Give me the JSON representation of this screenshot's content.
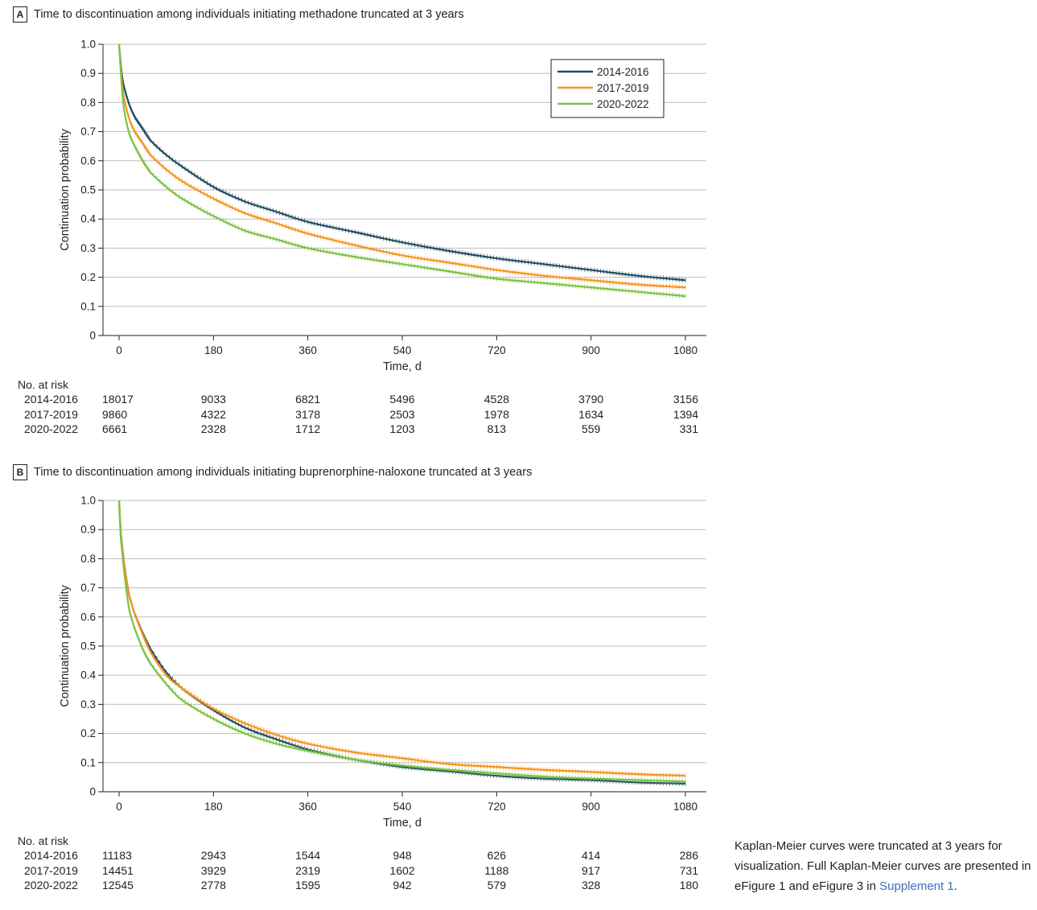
{
  "panels": [
    {
      "letter": "A",
      "title": "Time to discontinuation among individuals initiating methadone truncated at 3 years",
      "risk": {
        "header": "No. at risk",
        "rows": [
          {
            "label": "2014-2016",
            "values": [
              "18017",
              "9033",
              "6821",
              "5496",
              "4528",
              "3790",
              "3156"
            ]
          },
          {
            "label": "2017-2019",
            "values": [
              "9860",
              "4322",
              "3178",
              "2503",
              "1978",
              "1634",
              "1394"
            ]
          },
          {
            "label": "2020-2022",
            "values": [
              "6661",
              "2328",
              "1712",
              "1203",
              "813",
              "559",
              "331"
            ]
          }
        ]
      }
    },
    {
      "letter": "B",
      "title": "Time to discontinuation among individuals initiating buprenorphine-naloxone truncated at 3 years",
      "risk": {
        "header": "No. at risk",
        "rows": [
          {
            "label": "2014-2016",
            "values": [
              "11183",
              "2943",
              "1544",
              "948",
              "626",
              "414",
              "286"
            ]
          },
          {
            "label": "2017-2019",
            "values": [
              "14451",
              "3929",
              "2319",
              "1602",
              "1188",
              "917",
              "731"
            ]
          },
          {
            "label": "2020-2022",
            "values": [
              "12545",
              "2778",
              "1595",
              "942",
              "579",
              "328",
              "180"
            ]
          }
        ]
      }
    }
  ],
  "chart_data": [
    {
      "type": "line",
      "title": "Time to discontinuation among individuals initiating methadone truncated at 3 years",
      "xlabel": "Time, d",
      "ylabel": "Continuation probability",
      "xlim": [
        0,
        1080
      ],
      "ylim": [
        0,
        1.0
      ],
      "xticks": [
        "0",
        "180",
        "360",
        "540",
        "720",
        "900",
        "1080"
      ],
      "yticks": [
        "0",
        "0.1",
        "0.2",
        "0.3",
        "0.4",
        "0.5",
        "0.6",
        "0.7",
        "0.8",
        "0.9",
        "1.0"
      ],
      "grid": "horizontal",
      "legend_position": "top-right",
      "x": [
        0,
        5,
        10,
        20,
        30,
        45,
        60,
        90,
        120,
        180,
        240,
        300,
        360,
        450,
        540,
        630,
        720,
        810,
        900,
        990,
        1080
      ],
      "series": [
        {
          "name": "2014-2016",
          "color": "#1f4e5f",
          "values": [
            1.0,
            0.9,
            0.85,
            0.79,
            0.75,
            0.71,
            0.67,
            0.62,
            0.58,
            0.51,
            0.46,
            0.425,
            0.39,
            0.355,
            0.32,
            0.29,
            0.265,
            0.245,
            0.225,
            0.205,
            0.19
          ]
        },
        {
          "name": "2017-2019",
          "color": "#f7941d",
          "values": [
            1.0,
            0.88,
            0.81,
            0.74,
            0.7,
            0.66,
            0.62,
            0.57,
            0.53,
            0.47,
            0.42,
            0.385,
            0.35,
            0.31,
            0.275,
            0.25,
            0.225,
            0.205,
            0.19,
            0.175,
            0.165
          ]
        },
        {
          "name": "2020-2022",
          "color": "#7dc242",
          "values": [
            1.0,
            0.86,
            0.77,
            0.69,
            0.65,
            0.6,
            0.56,
            0.51,
            0.47,
            0.41,
            0.36,
            0.33,
            0.3,
            0.27,
            0.245,
            0.22,
            0.195,
            0.18,
            0.165,
            0.15,
            0.135
          ]
        }
      ]
    },
    {
      "type": "line",
      "title": "Time to discontinuation among individuals initiating buprenorphine-naloxone truncated at 3 years",
      "xlabel": "Time, d",
      "ylabel": "Continuation probability",
      "xlim": [
        0,
        1080
      ],
      "ylim": [
        0,
        1.0
      ],
      "xticks": [
        "0",
        "180",
        "360",
        "540",
        "720",
        "900",
        "1080"
      ],
      "yticks": [
        "0",
        "0.1",
        "0.2",
        "0.3",
        "0.4",
        "0.5",
        "0.6",
        "0.7",
        "0.8",
        "0.9",
        "1.0"
      ],
      "grid": "horizontal",
      "x": [
        0,
        3,
        5,
        10,
        15,
        20,
        30,
        45,
        60,
        90,
        120,
        180,
        240,
        300,
        360,
        450,
        540,
        630,
        720,
        810,
        900,
        990,
        1080
      ],
      "series": [
        {
          "name": "2014-2016",
          "color": "#1f4e5f",
          "values": [
            1.0,
            0.9,
            0.86,
            0.78,
            0.72,
            0.67,
            0.61,
            0.545,
            0.49,
            0.41,
            0.355,
            0.28,
            0.22,
            0.18,
            0.145,
            0.11,
            0.085,
            0.07,
            0.055,
            0.045,
            0.04,
            0.032,
            0.028
          ]
        },
        {
          "name": "2017-2019",
          "color": "#f7941d",
          "values": [
            1.0,
            0.9,
            0.86,
            0.78,
            0.72,
            0.67,
            0.61,
            0.54,
            0.48,
            0.4,
            0.355,
            0.285,
            0.235,
            0.195,
            0.165,
            0.135,
            0.115,
            0.095,
            0.085,
            0.075,
            0.068,
            0.06,
            0.055
          ]
        },
        {
          "name": "2020-2022",
          "color": "#7dc242",
          "values": [
            1.0,
            0.88,
            0.84,
            0.75,
            0.68,
            0.62,
            0.56,
            0.49,
            0.44,
            0.37,
            0.315,
            0.25,
            0.2,
            0.165,
            0.14,
            0.11,
            0.09,
            0.075,
            0.063,
            0.052,
            0.045,
            0.04,
            0.035
          ]
        }
      ]
    }
  ],
  "note": {
    "text": "Kaplan-Meier curves were truncated at 3 years for visualization. Full Kaplan-Meier curves are presented in eFigure 1 and eFigure 3 in ",
    "link": "Supplement 1",
    "end": "."
  }
}
